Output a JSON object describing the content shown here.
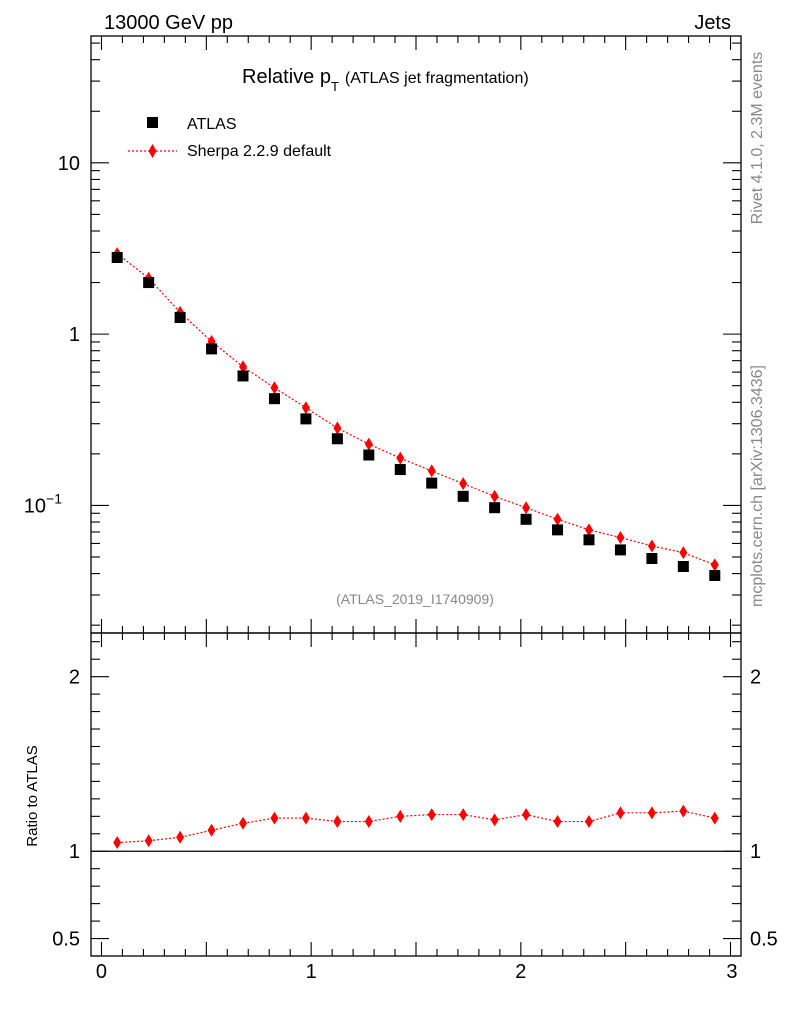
{
  "header": {
    "energy_label": "13000 GeV pp",
    "category_label": "Jets"
  },
  "side_labels": {
    "rivet": "Rivet 4.1.0,  2.3M events",
    "mcplots": "mcplots.cern.ch [arXiv:1306.3436]"
  },
  "analysis_id": "(ATLAS_2019_I1740909)",
  "colors": {
    "atlas": "#000000",
    "sherpa": "#ff0000",
    "watermark": "#888888"
  },
  "chart_data": [
    {
      "type": "scatter",
      "title": {
        "main": "Relative p",
        "sub": "T",
        "suffix": "(ATLAS jet fragmentation)"
      },
      "yscale": "log",
      "xlim": [
        -0.05,
        3.05
      ],
      "ylim": [
        0.018,
        55
      ],
      "yticks": [
        {
          "value": 10,
          "base": "10",
          "exp": ""
        },
        {
          "value": 1,
          "base": "1",
          "exp": ""
        },
        {
          "value": 0.1,
          "base": "10",
          "exp": "−1"
        }
      ],
      "legend": {
        "position": "top-left",
        "entries": [
          "ATLAS",
          "Sherpa 2.2.9 default"
        ]
      },
      "x": [
        0.075,
        0.225,
        0.375,
        0.525,
        0.675,
        0.825,
        0.975,
        1.125,
        1.275,
        1.425,
        1.575,
        1.725,
        1.875,
        2.025,
        2.175,
        2.325,
        2.475,
        2.625,
        2.775,
        2.925
      ],
      "series": [
        {
          "name": "ATLAS",
          "marker": "square",
          "values": [
            2.8,
            2.0,
            1.25,
            0.82,
            0.57,
            0.42,
            0.32,
            0.245,
            0.197,
            0.162,
            0.135,
            0.113,
            0.097,
            0.083,
            0.072,
            0.063,
            0.055,
            0.049,
            0.044,
            0.039
          ]
        },
        {
          "name": "Sherpa 2.2.9 default",
          "marker": "diamond",
          "values": [
            2.95,
            2.12,
            1.34,
            0.905,
            0.645,
            0.486,
            0.372,
            0.283,
            0.228,
            0.189,
            0.159,
            0.134,
            0.113,
            0.097,
            0.083,
            0.072,
            0.065,
            0.058,
            0.053,
            0.045
          ]
        }
      ]
    },
    {
      "type": "line",
      "ylabel": "Ratio to ATLAS",
      "xlim": [
        -0.05,
        3.05
      ],
      "ylim": [
        0.4,
        2.25
      ],
      "xticks": [
        "0",
        "1",
        "2",
        "3"
      ],
      "yticks": [
        {
          "value": 2,
          "label": "2"
        },
        {
          "value": 1,
          "label": "1"
        },
        {
          "value": 0.5,
          "label": "0.5"
        }
      ],
      "reference": 1,
      "x": [
        0.075,
        0.225,
        0.375,
        0.525,
        0.675,
        0.825,
        0.975,
        1.125,
        1.275,
        1.425,
        1.575,
        1.725,
        1.875,
        2.025,
        2.175,
        2.325,
        2.475,
        2.625,
        2.775,
        2.925
      ],
      "series": [
        {
          "name": "Sherpa 2.2.9 default / ATLAS",
          "values": [
            1.05,
            1.06,
            1.08,
            1.12,
            1.16,
            1.19,
            1.19,
            1.17,
            1.17,
            1.2,
            1.21,
            1.21,
            1.18,
            1.21,
            1.17,
            1.17,
            1.22,
            1.22,
            1.23,
            1.19
          ]
        }
      ]
    }
  ]
}
